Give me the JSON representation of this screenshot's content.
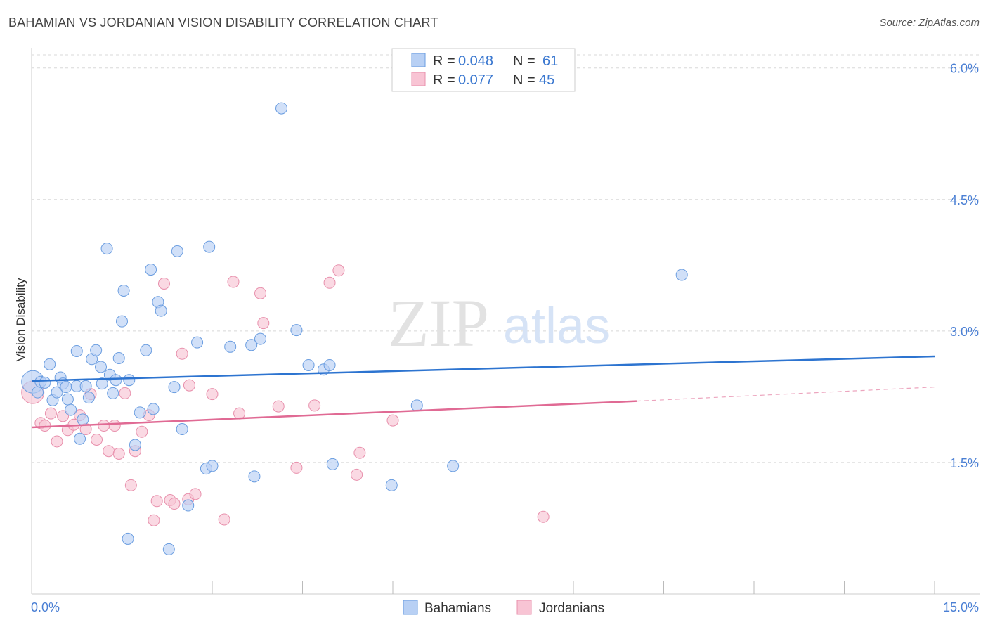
{
  "title": "BAHAMIAN VS JORDANIAN VISION DISABILITY CORRELATION CHART",
  "source": "Source: ZipAtlas.com",
  "watermark": {
    "zip": "ZIP",
    "atlas": "atlas"
  },
  "legend_top": [
    {
      "r_label": "R =",
      "r_value": "0.048",
      "n_label": "N =",
      "n_value": "61"
    },
    {
      "r_label": "R =",
      "r_value": "0.077",
      "n_label": "N =",
      "n_value": "45"
    }
  ],
  "colors": {
    "blue_fill": "#b8d0f4",
    "blue_stroke": "#6a9de0",
    "blue_line": "#2d74d0",
    "pink_fill": "#f8c4d4",
    "pink_stroke": "#e890ac",
    "pink_line": "#e06a94",
    "grid": "#d8d8d8",
    "tick_text": "#4a7fd4"
  },
  "chart_data": {
    "type": "scatter",
    "title": "BAHAMIAN VS JORDANIAN VISION DISABILITY CORRELATION CHART",
    "xlabel": "",
    "ylabel": "Vision Disability",
    "xlim": [
      0,
      15
    ],
    "ylim": [
      0,
      6.15
    ],
    "x_tick_labels": [
      "0.0%",
      "15.0%"
    ],
    "y_ticks": [
      1.5,
      3.0,
      4.5,
      6.0
    ],
    "y_tick_labels": [
      "1.5%",
      "3.0%",
      "4.5%",
      "6.0%"
    ],
    "grid": "horizontal dashed",
    "legend_placement": "top-center and bottom-center",
    "series": [
      {
        "name": "Bahamians",
        "r": 0.048,
        "n": 61,
        "trend": {
          "x": [
            0,
            15
          ],
          "y": [
            2.43,
            2.71
          ],
          "style": "solid"
        },
        "points": [
          [
            0.02,
            2.42
          ],
          [
            0.1,
            2.3
          ],
          [
            0.15,
            2.42
          ],
          [
            0.22,
            2.41
          ],
          [
            0.3,
            2.62
          ],
          [
            0.35,
            2.21
          ],
          [
            0.42,
            2.3
          ],
          [
            0.48,
            2.47
          ],
          [
            0.52,
            2.4
          ],
          [
            0.57,
            2.36
          ],
          [
            0.6,
            2.22
          ],
          [
            0.65,
            2.1
          ],
          [
            0.75,
            2.37
          ],
          [
            0.75,
            2.77
          ],
          [
            0.8,
            1.77
          ],
          [
            0.85,
            1.99
          ],
          [
            0.9,
            2.37
          ],
          [
            0.95,
            2.24
          ],
          [
            1.0,
            2.68
          ],
          [
            1.07,
            2.78
          ],
          [
            1.15,
            2.59
          ],
          [
            1.17,
            2.4
          ],
          [
            1.25,
            3.94
          ],
          [
            1.3,
            2.5
          ],
          [
            1.35,
            2.29
          ],
          [
            1.4,
            2.44
          ],
          [
            1.45,
            2.69
          ],
          [
            1.5,
            3.11
          ],
          [
            1.53,
            3.46
          ],
          [
            1.6,
            0.63
          ],
          [
            1.62,
            2.44
          ],
          [
            1.72,
            1.7
          ],
          [
            1.8,
            2.07
          ],
          [
            1.9,
            2.78
          ],
          [
            1.98,
            3.7
          ],
          [
            2.02,
            2.11
          ],
          [
            2.1,
            3.33
          ],
          [
            2.15,
            3.23
          ],
          [
            2.28,
            0.51
          ],
          [
            2.37,
            2.36
          ],
          [
            2.42,
            3.91
          ],
          [
            2.5,
            1.88
          ],
          [
            2.6,
            1.01
          ],
          [
            2.75,
            2.87
          ],
          [
            2.9,
            1.43
          ],
          [
            2.95,
            3.96
          ],
          [
            3.0,
            1.46
          ],
          [
            3.3,
            2.82
          ],
          [
            3.7,
            1.34
          ],
          [
            3.65,
            2.84
          ],
          [
            3.8,
            2.91
          ],
          [
            4.15,
            5.54
          ],
          [
            4.4,
            3.01
          ],
          [
            4.6,
            2.61
          ],
          [
            4.85,
            2.56
          ],
          [
            4.95,
            2.61
          ],
          [
            5.0,
            1.48
          ],
          [
            5.98,
            1.24
          ],
          [
            6.4,
            2.15
          ],
          [
            7.0,
            1.46
          ],
          [
            10.8,
            3.64
          ]
        ]
      },
      {
        "name": "Jordanians",
        "r": 0.077,
        "n": 45,
        "trend": {
          "x": [
            0,
            10.05
          ],
          "y": [
            1.9,
            2.2
          ],
          "style": "solid",
          "extension": {
            "x": [
              10.05,
              15
            ],
            "y": [
              2.2,
              2.36
            ],
            "style": "dashed"
          }
        },
        "points": [
          [
            0.02,
            2.3
          ],
          [
            0.15,
            1.95
          ],
          [
            0.22,
            1.92
          ],
          [
            0.32,
            2.06
          ],
          [
            0.42,
            1.74
          ],
          [
            0.52,
            2.03
          ],
          [
            0.6,
            1.87
          ],
          [
            0.7,
            1.93
          ],
          [
            0.8,
            2.04
          ],
          [
            0.9,
            1.88
          ],
          [
            0.98,
            2.28
          ],
          [
            1.08,
            1.76
          ],
          [
            1.2,
            1.92
          ],
          [
            1.28,
            1.63
          ],
          [
            1.38,
            1.92
          ],
          [
            1.45,
            1.6
          ],
          [
            1.55,
            2.29
          ],
          [
            1.65,
            1.24
          ],
          [
            1.72,
            1.63
          ],
          [
            1.83,
            1.85
          ],
          [
            1.95,
            2.04
          ],
          [
            2.03,
            0.84
          ],
          [
            2.08,
            1.06
          ],
          [
            2.2,
            3.54
          ],
          [
            2.3,
            1.07
          ],
          [
            2.37,
            1.03
          ],
          [
            2.5,
            2.74
          ],
          [
            2.6,
            1.08
          ],
          [
            2.62,
            2.38
          ],
          [
            2.72,
            1.14
          ],
          [
            3.0,
            2.28
          ],
          [
            3.2,
            0.85
          ],
          [
            3.35,
            3.56
          ],
          [
            3.45,
            2.06
          ],
          [
            3.8,
            3.43
          ],
          [
            3.85,
            3.09
          ],
          [
            4.1,
            2.14
          ],
          [
            4.4,
            1.44
          ],
          [
            4.7,
            2.15
          ],
          [
            4.95,
            3.55
          ],
          [
            5.1,
            3.69
          ],
          [
            5.4,
            1.36
          ],
          [
            5.45,
            1.61
          ],
          [
            6.0,
            1.98
          ],
          [
            8.5,
            0.88
          ]
        ]
      }
    ]
  },
  "bottom_legend": [
    "Bahamians",
    "Jordanians"
  ]
}
